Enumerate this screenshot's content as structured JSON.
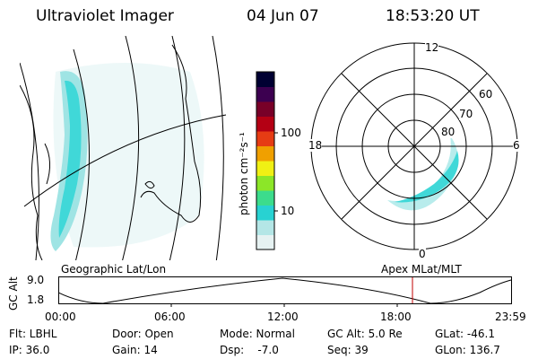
{
  "header": {
    "instrument": "Ultraviolet Imager",
    "date": "04 Jun 07",
    "time": "18:53:20 UT"
  },
  "geo_panel": {
    "label": "Geographic Lat/Lon"
  },
  "polar_panel": {
    "label": "Apex MLat/MLT",
    "mlt_labels": {
      "top": "12",
      "left": "18",
      "right": "6",
      "bottom": "0"
    },
    "lat_labels": [
      "60",
      "70",
      "80"
    ]
  },
  "colorbar": {
    "unit_label": "photon cm⁻²s⁻¹",
    "ticks": [
      "100",
      "10"
    ],
    "scale": "log",
    "colors": [
      "#e6f2f2",
      "#b4e6e6",
      "#28d2d2",
      "#3cdc8c",
      "#8ce628",
      "#f0f014",
      "#f0a000",
      "#e63c14",
      "#b40014",
      "#780028",
      "#3c0050",
      "#000032"
    ]
  },
  "timeline": {
    "y_axis_label": "GC Alt",
    "y_ticks": [
      "9.0",
      "1.8"
    ],
    "x_ticks": [
      "00:00",
      "06:00",
      "12:00",
      "18:00",
      "23:59"
    ],
    "current_time_marker": "18:53"
  },
  "info": {
    "row1": [
      "Flt: LBHL",
      "Door: Open",
      "Mode: Normal",
      "GC Alt: 5.0 Re",
      "GLat: -46.1"
    ],
    "row2": [
      "IP: 36.0",
      "Gain: 14",
      "Dsp:    -7.0",
      "Seq: 39",
      "GLon: 136.7"
    ]
  },
  "colors": {
    "aurora": "#40d8d8",
    "aurora_light": "#b8ecec",
    "marker": "#c00000"
  }
}
